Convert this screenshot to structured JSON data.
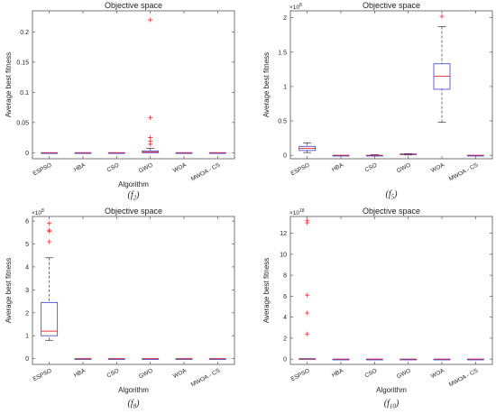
{
  "chart_data": [
    {
      "type": "box",
      "title": "Objective space",
      "xlabel": "Algorithm",
      "ylabel": "Average best fitness",
      "caption": "(f",
      "caption_sub": "2",
      "caption_end": ")",
      "exponent_label": "",
      "categories": [
        "ESPSO",
        "HBA",
        "CSO",
        "GWO",
        "WOA",
        "MWOA - CS"
      ],
      "ylim": [
        -0.01,
        0.235
      ],
      "yticks": [
        0,
        0.05,
        0.1,
        0.15,
        0.2
      ],
      "ytick_labels": [
        "0",
        "0.05",
        "0.1",
        "0.15",
        "0.2"
      ],
      "boxes": [
        {
          "q1": 0,
          "median": 0,
          "q3": 0,
          "lo": 0,
          "hi": 0,
          "outliers": []
        },
        {
          "q1": 0,
          "median": 0,
          "q3": 0,
          "lo": 0,
          "hi": 0,
          "outliers": []
        },
        {
          "q1": 0,
          "median": 0,
          "q3": 0,
          "lo": 0,
          "hi": 0,
          "outliers": []
        },
        {
          "q1": 0.0,
          "median": 0.001,
          "q3": 0.003,
          "lo": 0,
          "hi": 0.007,
          "outliers": [
            0.014,
            0.019,
            0.025,
            0.058,
            0.22
          ]
        },
        {
          "q1": 0,
          "median": 0,
          "q3": 0,
          "lo": 0,
          "hi": 0,
          "outliers": []
        },
        {
          "q1": 0,
          "median": 0,
          "q3": 0,
          "lo": 0,
          "hi": 0,
          "outliers": []
        }
      ]
    },
    {
      "type": "box",
      "title": "Objective space",
      "xlabel": "",
      "ylabel": "Average best fitness",
      "caption": "(f",
      "caption_sub": "5",
      "caption_end": ")",
      "exponent_label": "×10",
      "exponent_power": "8",
      "categories": [
        "ESPSO",
        "HBA",
        "CSO",
        "GWO",
        "WOA",
        "MWOA - CS"
      ],
      "ylim": [
        -0.05,
        2.1
      ],
      "yticks": [
        0,
        0.5,
        1,
        1.5,
        2
      ],
      "ytick_labels": [
        "0",
        "0.5",
        "1",
        "1.5",
        "2"
      ],
      "boxes": [
        {
          "q1": 0.07,
          "median": 0.1,
          "q3": 0.13,
          "lo": 0.04,
          "hi": 0.18,
          "outliers": []
        },
        {
          "q1": 0,
          "median": 0,
          "q3": 0,
          "lo": 0,
          "hi": 0,
          "outliers": []
        },
        {
          "q1": 0,
          "median": 0,
          "q3": 0,
          "lo": 0,
          "hi": 0.01,
          "outliers": []
        },
        {
          "q1": 0.01,
          "median": 0.015,
          "q3": 0.02,
          "lo": 0.005,
          "hi": 0.025,
          "outliers": []
        },
        {
          "q1": 0.96,
          "median": 1.15,
          "q3": 1.33,
          "lo": 0.48,
          "hi": 1.87,
          "outliers": [
            2.02
          ]
        },
        {
          "q1": 0,
          "median": 0,
          "q3": 0,
          "lo": 0,
          "hi": 0,
          "outliers": []
        }
      ]
    },
    {
      "type": "box",
      "title": "Objective space",
      "xlabel": "Algorithm",
      "ylabel": "Average best fitness",
      "caption": "(f",
      "caption_sub": "8",
      "caption_end": ")",
      "exponent_label": "×10",
      "exponent_power": "8",
      "categories": [
        "ESPSO",
        "HBA",
        "CSO",
        "GWO",
        "WOA",
        "MWOA - CS"
      ],
      "ylim": [
        -0.25,
        6.2
      ],
      "yticks": [
        0,
        1,
        2,
        3,
        4,
        5,
        6
      ],
      "ytick_labels": [
        "0",
        "1",
        "2",
        "3",
        "4",
        "5",
        "6"
      ],
      "boxes": [
        {
          "q1": 1.0,
          "median": 1.2,
          "q3": 2.45,
          "lo": 0.8,
          "hi": 4.4,
          "outliers": [
            5.1,
            5.55,
            5.6,
            5.9
          ]
        },
        {
          "q1": 0,
          "median": 0,
          "q3": 0,
          "lo": 0,
          "hi": 0,
          "outliers": []
        },
        {
          "q1": 0,
          "median": 0,
          "q3": 0,
          "lo": 0,
          "hi": 0,
          "outliers": []
        },
        {
          "q1": 0,
          "median": 0,
          "q3": 0,
          "lo": 0,
          "hi": 0,
          "outliers": []
        },
        {
          "q1": 0,
          "median": 0,
          "q3": 0,
          "lo": 0,
          "hi": 0,
          "outliers": []
        },
        {
          "q1": 0,
          "median": 0,
          "q3": 0,
          "lo": 0,
          "hi": 0,
          "outliers": []
        }
      ]
    },
    {
      "type": "box",
      "title": "Objective space",
      "xlabel": "Algorithm",
      "ylabel": "Average best fitness",
      "caption": "(f",
      "caption_sub": "10",
      "caption_end": ")",
      "exponent_label": "×10",
      "exponent_power": "18",
      "categories": [
        "ESPSO",
        "HBA",
        "CSO",
        "GWO",
        "WOA",
        "MWOA - CS"
      ],
      "ylim": [
        -0.5,
        13.6
      ],
      "yticks": [
        0,
        2,
        4,
        6,
        8,
        10,
        12
      ],
      "ytick_labels": [
        "0",
        "2",
        "4",
        "6",
        "8",
        "10",
        "12"
      ],
      "boxes": [
        {
          "q1": 0,
          "median": 0,
          "q3": 0.05,
          "lo": 0,
          "hi": 0.05,
          "outliers": [
            2.4,
            4.4,
            6.1,
            13.0,
            13.2
          ]
        },
        {
          "q1": 0,
          "median": 0,
          "q3": 0,
          "lo": 0,
          "hi": 0,
          "outliers": []
        },
        {
          "q1": 0,
          "median": 0,
          "q3": 0,
          "lo": 0,
          "hi": 0,
          "outliers": []
        },
        {
          "q1": 0,
          "median": 0,
          "q3": 0,
          "lo": 0,
          "hi": 0,
          "outliers": []
        },
        {
          "q1": 0,
          "median": 0,
          "q3": 0,
          "lo": 0,
          "hi": 0,
          "outliers": []
        },
        {
          "q1": 0,
          "median": 0,
          "q3": 0,
          "lo": 0,
          "hi": 0,
          "outliers": []
        }
      ]
    }
  ]
}
